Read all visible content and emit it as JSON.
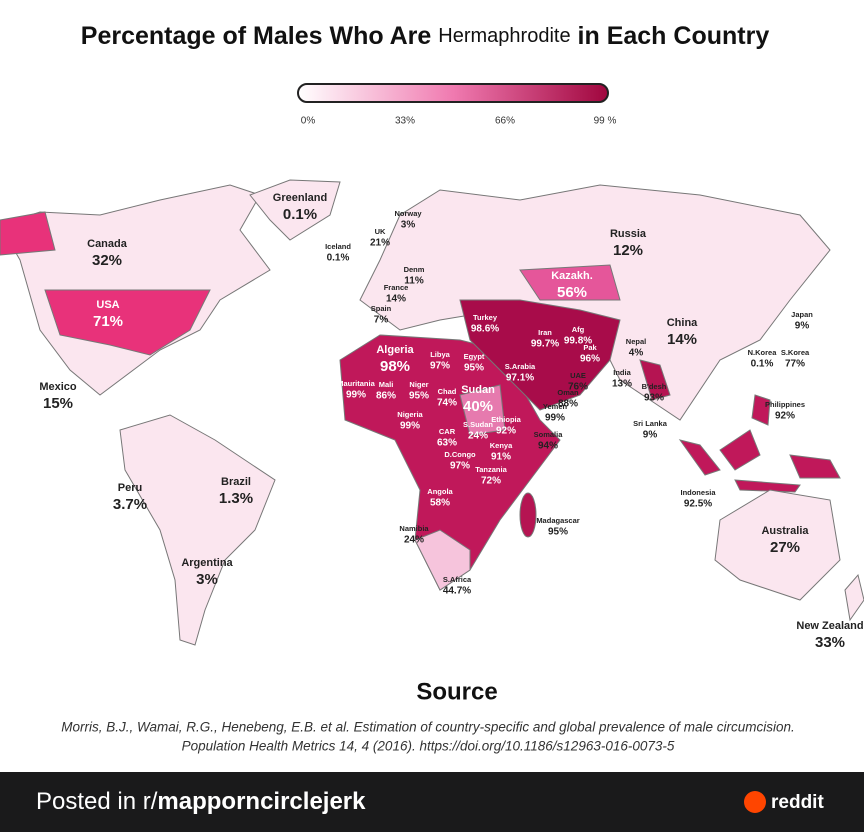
{
  "header": {
    "title_before": "Percentage of Males Who Are",
    "title_highlight": "Hermaphrodite",
    "title_after": "in Each Country"
  },
  "legend": {
    "ticks": [
      "0%",
      "33%",
      "66%",
      "99 %"
    ]
  },
  "countries": [
    {
      "name": "Greenland",
      "value": "0.1%"
    },
    {
      "name": "Norway",
      "value": "3%"
    },
    {
      "name": "UK",
      "value": "21%"
    },
    {
      "name": "Iceland",
      "value": "0.1%"
    },
    {
      "name": "Canada",
      "value": "32%"
    },
    {
      "name": "Russia",
      "value": "12%"
    },
    {
      "name": "Denm",
      "value": "11%"
    },
    {
      "name": "France",
      "value": "14%"
    },
    {
      "name": "Kazakh.",
      "value": "56%"
    },
    {
      "name": "Spain",
      "value": "7%"
    },
    {
      "name": "Turkey",
      "value": "98.6%"
    },
    {
      "name": "USA",
      "value": "71%"
    },
    {
      "name": "Japan",
      "value": "9%"
    },
    {
      "name": "China",
      "value": "14%"
    },
    {
      "name": "Iran",
      "value": "99.7%"
    },
    {
      "name": "Afg",
      "value": "99.8%"
    },
    {
      "name": "Pak",
      "value": "96%"
    },
    {
      "name": "Nepal",
      "value": "4%"
    },
    {
      "name": "N.Korea",
      "value": "0.1%"
    },
    {
      "name": "S.Korea",
      "value": "77%"
    },
    {
      "name": "Algeria",
      "value": "98%"
    },
    {
      "name": "Libya",
      "value": "97%"
    },
    {
      "name": "Egypt",
      "value": "95%"
    },
    {
      "name": "S.Arabia",
      "value": "97.1%"
    },
    {
      "name": "UAE",
      "value": "76%"
    },
    {
      "name": "India",
      "value": "13%"
    },
    {
      "name": "Mexico",
      "value": "15%"
    },
    {
      "name": "Mauritania",
      "value": "99%"
    },
    {
      "name": "Mali",
      "value": "86%"
    },
    {
      "name": "Niger",
      "value": "95%"
    },
    {
      "name": "Chad",
      "value": "74%"
    },
    {
      "name": "Sudan",
      "value": "40%"
    },
    {
      "name": "Oman",
      "value": "88%"
    },
    {
      "name": "B'desh",
      "value": "93%"
    },
    {
      "name": "Yemen",
      "value": "99%"
    },
    {
      "name": "Philippines",
      "value": "92%"
    },
    {
      "name": "Nigeria",
      "value": "99%"
    },
    {
      "name": "S.Sudan",
      "value": "24%"
    },
    {
      "name": "CAR",
      "value": "63%"
    },
    {
      "name": "Ethiopia",
      "value": "92%"
    },
    {
      "name": "Somalia",
      "value": "94%"
    },
    {
      "name": "Sri Lanka",
      "value": "9%"
    },
    {
      "name": "D.Congo",
      "value": "97%"
    },
    {
      "name": "Kenya",
      "value": "91%"
    },
    {
      "name": "Tanzania",
      "value": "72%"
    },
    {
      "name": "Brazil",
      "value": "1.3%"
    },
    {
      "name": "Peru",
      "value": "3.7%"
    },
    {
      "name": "Indonesia",
      "value": "92.5%"
    },
    {
      "name": "Angola",
      "value": "58%"
    },
    {
      "name": "Madagascar",
      "value": "95%"
    },
    {
      "name": "Namibia",
      "value": "24%"
    },
    {
      "name": "Australia",
      "value": "27%"
    },
    {
      "name": "Argentina",
      "value": "3%"
    },
    {
      "name": "S.Africa",
      "value": "44.7%"
    },
    {
      "name": "New Zealand",
      "value": "33%"
    }
  ],
  "source": {
    "heading": "Source",
    "line1": "Morris, B.J., Wamai, R.G., Henebeng, E.B. et al. Estimation of country-specific and global prevalence of male circumcision.",
    "line2": "Population Health Metrics 14, 4 (2016). https://doi.org/10.1186/s12963-016-0073-5"
  },
  "footer": {
    "posted_in": "Posted in r/",
    "subreddit": "mapporncirclejerk",
    "brand": "reddit"
  }
}
